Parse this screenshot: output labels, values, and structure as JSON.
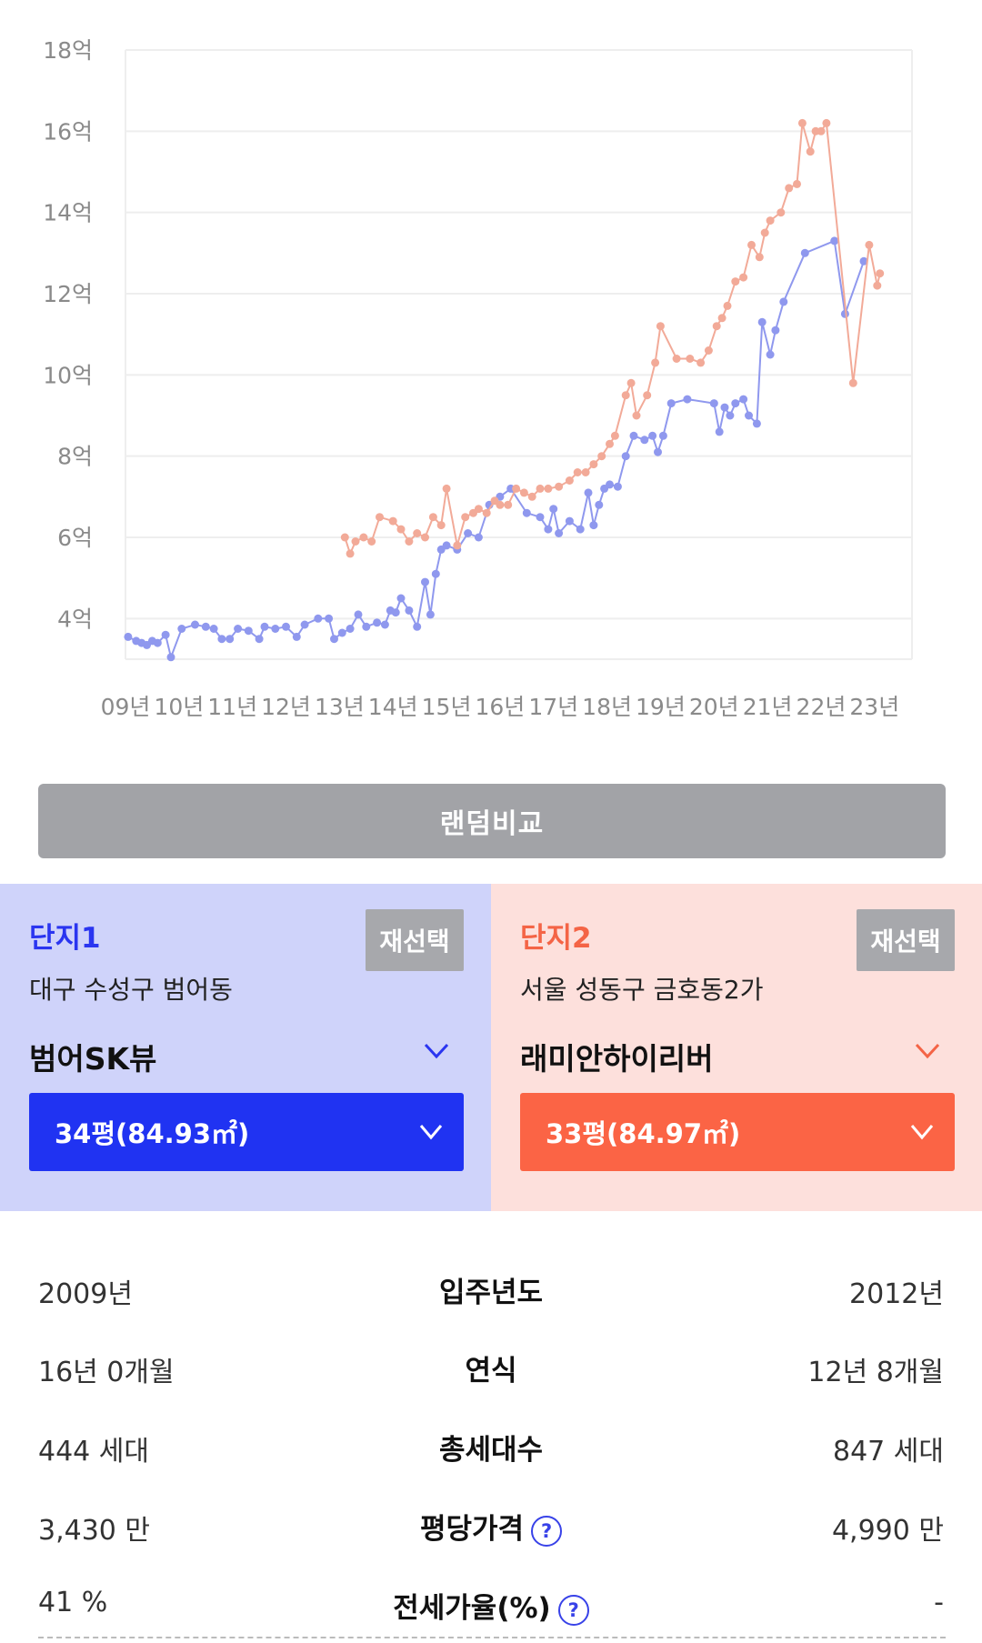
{
  "chart_data": {
    "type": "line",
    "y_tick_labels": [
      "4억",
      "6억",
      "8억",
      "10억",
      "12억",
      "14억",
      "16억",
      "18억"
    ],
    "y_ticks": [
      4,
      6,
      8,
      10,
      12,
      14,
      16,
      18
    ],
    "x_tick_labels": [
      "09년",
      "10년",
      "11년",
      "12년",
      "13년",
      "14년",
      "15년",
      "16년",
      "17년",
      "18년",
      "19년",
      "20년",
      "21년",
      "22년",
      "23년"
    ],
    "x_ticks": [
      2009,
      2010,
      2011,
      2012,
      2013,
      2014,
      2015,
      2016,
      2017,
      2018,
      2019,
      2020,
      2021,
      2022,
      2023
    ],
    "xlim": [
      2009,
      2023.7
    ],
    "ylim": [
      3.0,
      18.0
    ],
    "grid": true,
    "series": [
      {
        "color": "#8f98ee",
        "points": [
          [
            2009.05,
            3.55
          ],
          [
            2009.2,
            3.45
          ],
          [
            2009.3,
            3.4
          ],
          [
            2009.4,
            3.35
          ],
          [
            2009.5,
            3.45
          ],
          [
            2009.6,
            3.4
          ],
          [
            2009.75,
            3.6
          ],
          [
            2009.85,
            3.05
          ],
          [
            2010.05,
            3.75
          ],
          [
            2010.3,
            3.85
          ],
          [
            2010.5,
            3.8
          ],
          [
            2010.65,
            3.75
          ],
          [
            2010.8,
            3.5
          ],
          [
            2010.95,
            3.5
          ],
          [
            2011.1,
            3.75
          ],
          [
            2011.3,
            3.7
          ],
          [
            2011.5,
            3.5
          ],
          [
            2011.6,
            3.8
          ],
          [
            2011.8,
            3.75
          ],
          [
            2012.0,
            3.8
          ],
          [
            2012.2,
            3.55
          ],
          [
            2012.35,
            3.85
          ],
          [
            2012.6,
            4.0
          ],
          [
            2012.8,
            4.0
          ],
          [
            2012.9,
            3.5
          ],
          [
            2013.05,
            3.65
          ],
          [
            2013.2,
            3.75
          ],
          [
            2013.35,
            4.1
          ],
          [
            2013.5,
            3.8
          ],
          [
            2013.7,
            3.9
          ],
          [
            2013.85,
            3.85
          ],
          [
            2013.95,
            4.2
          ],
          [
            2014.05,
            4.15
          ],
          [
            2014.15,
            4.5
          ],
          [
            2014.3,
            4.2
          ],
          [
            2014.45,
            3.8
          ],
          [
            2014.6,
            4.9
          ],
          [
            2014.7,
            4.1
          ],
          [
            2014.8,
            5.1
          ],
          [
            2014.9,
            5.7
          ],
          [
            2015.0,
            5.8
          ],
          [
            2015.2,
            5.7
          ],
          [
            2015.4,
            6.1
          ],
          [
            2015.6,
            6.0
          ],
          [
            2015.8,
            6.8
          ],
          [
            2016.0,
            7.0
          ],
          [
            2016.2,
            7.2
          ],
          [
            2016.5,
            6.6
          ],
          [
            2016.75,
            6.5
          ],
          [
            2016.9,
            6.2
          ],
          [
            2017.0,
            6.7
          ],
          [
            2017.1,
            6.1
          ],
          [
            2017.3,
            6.4
          ],
          [
            2017.5,
            6.2
          ],
          [
            2017.65,
            7.1
          ],
          [
            2017.75,
            6.3
          ],
          [
            2017.85,
            6.8
          ],
          [
            2017.95,
            7.2
          ],
          [
            2018.05,
            7.3
          ],
          [
            2018.2,
            7.25
          ],
          [
            2018.35,
            8.0
          ],
          [
            2018.5,
            8.5
          ],
          [
            2018.7,
            8.4
          ],
          [
            2018.85,
            8.5
          ],
          [
            2018.95,
            8.1
          ],
          [
            2019.05,
            8.5
          ],
          [
            2019.2,
            9.3
          ],
          [
            2019.5,
            9.4
          ],
          [
            2020.0,
            9.3
          ],
          [
            2020.1,
            8.6
          ],
          [
            2020.2,
            9.2
          ],
          [
            2020.3,
            9.0
          ],
          [
            2020.4,
            9.3
          ],
          [
            2020.55,
            9.4
          ],
          [
            2020.65,
            9.0
          ],
          [
            2020.8,
            8.8
          ],
          [
            2020.9,
            11.3
          ],
          [
            2021.05,
            10.5
          ],
          [
            2021.15,
            11.1
          ],
          [
            2021.3,
            11.8
          ],
          [
            2021.7,
            13.0
          ],
          [
            2022.25,
            13.3
          ],
          [
            2022.45,
            11.5
          ],
          [
            2022.8,
            12.8
          ]
        ]
      },
      {
        "color": "#f2aa98",
        "points": [
          [
            2013.1,
            6.0
          ],
          [
            2013.2,
            5.6
          ],
          [
            2013.3,
            5.9
          ],
          [
            2013.45,
            6.0
          ],
          [
            2013.6,
            5.9
          ],
          [
            2013.75,
            6.5
          ],
          [
            2014.0,
            6.4
          ],
          [
            2014.15,
            6.2
          ],
          [
            2014.3,
            5.9
          ],
          [
            2014.45,
            6.1
          ],
          [
            2014.6,
            6.0
          ],
          [
            2014.75,
            6.5
          ],
          [
            2014.9,
            6.3
          ],
          [
            2015.0,
            7.2
          ],
          [
            2015.2,
            5.8
          ],
          [
            2015.35,
            6.5
          ],
          [
            2015.5,
            6.6
          ],
          [
            2015.6,
            6.7
          ],
          [
            2015.75,
            6.6
          ],
          [
            2015.9,
            6.9
          ],
          [
            2016.0,
            6.8
          ],
          [
            2016.15,
            6.8
          ],
          [
            2016.3,
            7.2
          ],
          [
            2016.45,
            7.1
          ],
          [
            2016.6,
            7.0
          ],
          [
            2016.75,
            7.2
          ],
          [
            2016.9,
            7.2
          ],
          [
            2017.1,
            7.25
          ],
          [
            2017.3,
            7.4
          ],
          [
            2017.45,
            7.6
          ],
          [
            2017.6,
            7.6
          ],
          [
            2017.75,
            7.8
          ],
          [
            2017.9,
            8.0
          ],
          [
            2018.05,
            8.3
          ],
          [
            2018.15,
            8.5
          ],
          [
            2018.35,
            9.5
          ],
          [
            2018.45,
            9.8
          ],
          [
            2018.55,
            9.0
          ],
          [
            2018.75,
            9.5
          ],
          [
            2018.9,
            10.3
          ],
          [
            2019.0,
            11.2
          ],
          [
            2019.3,
            10.4
          ],
          [
            2019.55,
            10.4
          ],
          [
            2019.75,
            10.3
          ],
          [
            2019.9,
            10.6
          ],
          [
            2020.05,
            11.2
          ],
          [
            2020.15,
            11.4
          ],
          [
            2020.25,
            11.7
          ],
          [
            2020.4,
            12.3
          ],
          [
            2020.55,
            12.4
          ],
          [
            2020.7,
            13.2
          ],
          [
            2020.85,
            12.9
          ],
          [
            2020.95,
            13.5
          ],
          [
            2021.05,
            13.8
          ],
          [
            2021.25,
            14.0
          ],
          [
            2021.4,
            14.6
          ],
          [
            2021.55,
            14.7
          ],
          [
            2021.65,
            16.2
          ],
          [
            2021.8,
            15.5
          ],
          [
            2021.9,
            16.0
          ],
          [
            2022.0,
            16.0
          ],
          [
            2022.1,
            16.2
          ],
          [
            2022.6,
            9.8
          ],
          [
            2022.9,
            13.2
          ],
          [
            2023.05,
            12.2
          ],
          [
            2023.1,
            12.5
          ]
        ]
      }
    ]
  },
  "random_compare_label": "랜덤비교",
  "complex1": {
    "title": "단지1",
    "reselect": "재선택",
    "address": "대구 수성구 범어동",
    "name": "범어SK뷰",
    "size": "34평(84.93㎡)",
    "accent": "#2033f2"
  },
  "complex2": {
    "title": "단지2",
    "reselect": "재선택",
    "address": "서울 성동구 금호동2가",
    "name": "래미안하이리버",
    "size": "33평(84.97㎡)",
    "accent": "#fb6445"
  },
  "compare_rows": [
    {
      "label": "입주년도",
      "left": "2009년",
      "right": "2012년",
      "help": false
    },
    {
      "label": "연식",
      "left": "16년 0개월",
      "right": "12년 8개월",
      "help": false
    },
    {
      "label": "총세대수",
      "left": "444 세대",
      "right": "847 세대",
      "help": false
    },
    {
      "label": "평당가격",
      "left": "3,430 만",
      "right": "4,990 만",
      "help": true
    },
    {
      "label": "전세가율(%)",
      "left": "41 %",
      "right": "-",
      "help": true
    }
  ]
}
